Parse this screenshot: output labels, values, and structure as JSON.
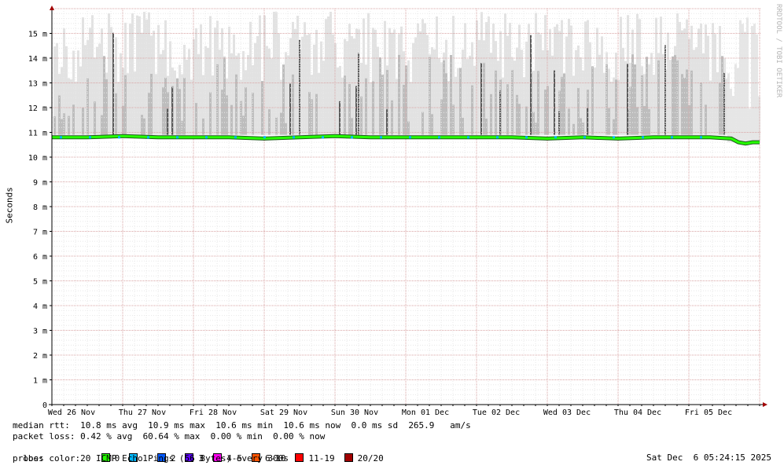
{
  "chart_data": {
    "type": "line",
    "ylabel": "Seconds",
    "ylim": [
      0,
      16
    ],
    "ytick_labels": [
      "0",
      "1 m",
      "2 m",
      "3 m",
      "4 m",
      "5 m",
      "6 m",
      "7 m",
      "8 m",
      "9 m",
      "10 m",
      "11 m",
      "12 m",
      "13 m",
      "14 m",
      "15 m"
    ],
    "ytick_values": [
      0,
      1,
      2,
      3,
      4,
      5,
      6,
      7,
      8,
      9,
      10,
      11,
      12,
      13,
      14,
      15
    ],
    "x_labels": [
      "Wed 26 Nov",
      "Thu 27 Nov",
      "Fri 28 Nov",
      "Sat 29 Nov",
      "Sun 30 Nov",
      "Mon 01 Dec",
      "Tue 02 Dec",
      "Wed 03 Dec",
      "Thu 04 Dec",
      "Fri 05 Dec"
    ],
    "series": [
      {
        "x_days": [
          0,
          0.5,
          1,
          1.5,
          2,
          2.5,
          3,
          3.5,
          4,
          4.5,
          5,
          5.5,
          6,
          6.5,
          7,
          7.5,
          8,
          8.5,
          9,
          9.3,
          9.6,
          9.7,
          9.8,
          9.9,
          10
        ],
        "values": [
          10.8,
          10.8,
          10.85,
          10.8,
          10.8,
          10.8,
          10.75,
          10.8,
          10.85,
          10.8,
          10.8,
          10.8,
          10.8,
          10.8,
          10.75,
          10.8,
          10.75,
          10.8,
          10.8,
          10.8,
          10.75,
          10.6,
          10.55,
          10.6,
          10.6
        ]
      }
    ],
    "grid": true,
    "watermark": "RRDTOOL / TOBI OETIKER"
  },
  "legend": {
    "median_rtt": "median rtt:  10.8 ms avg  10.9 ms max  10.6 ms min  10.6 ms now  0.0 ms sd  265.9   am/s",
    "packet_loss": "packet loss: 0.42 % avg  60.64 % max  0.00 % min  0.00 % now",
    "loss_color_label": "loss color:",
    "loss_colors": [
      {
        "label": "0",
        "color": "#26ff00"
      },
      {
        "label": "1",
        "color": "#00b8ff"
      },
      {
        "label": "2",
        "color": "#0059ff"
      },
      {
        "label": "3",
        "color": "#5e00ff"
      },
      {
        "label": "4-5",
        "color": "#ff00f0"
      },
      {
        "label": "6-10",
        "color": "#ff5500"
      },
      {
        "label": "11-19",
        "color": "#ff0000"
      },
      {
        "label": "20/20",
        "color": "#a10000"
      }
    ],
    "probe": "probe:       20 ICMP Echo Pings (56 Bytes) every 300s",
    "timestamp": "Sat Dec  6 05:24:15 2025"
  }
}
